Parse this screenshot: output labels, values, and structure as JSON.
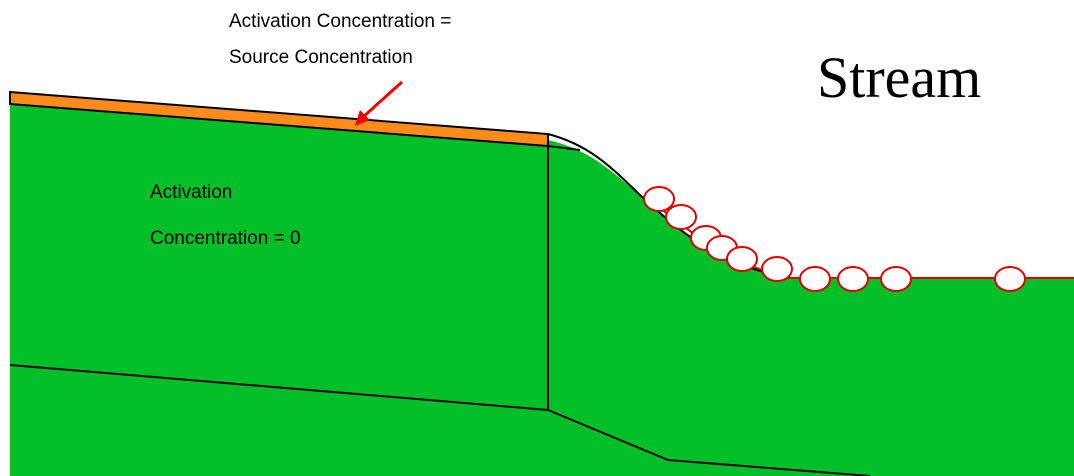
{
  "labels": {
    "top_line1": "Activation Concentration =",
    "top_line2": "Source Concentration",
    "inner_line1": "Activation",
    "inner_line2": "Concentration = 0",
    "stream": "Stream"
  }
}
